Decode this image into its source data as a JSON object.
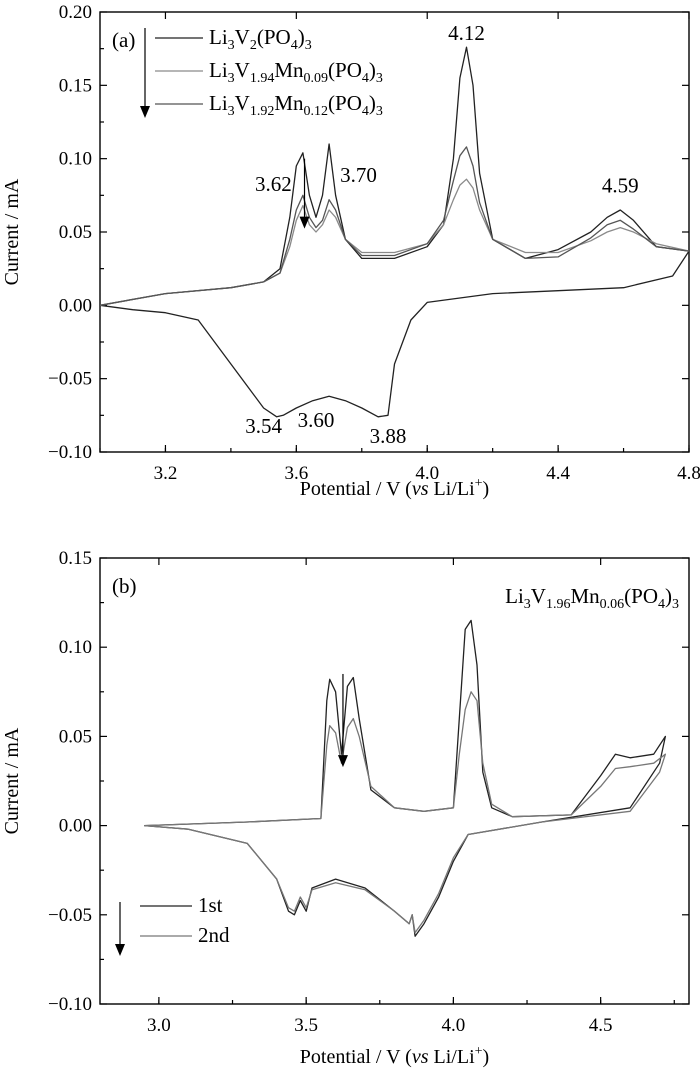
{
  "chart_data": [
    {
      "type": "line",
      "panel_label": "(a)",
      "xlabel": "Potential / V (vs Li/Li+)",
      "xlabel_parts": [
        "Potential / V (",
        "vs",
        " Li/Li",
        "+",
        ")"
      ],
      "ylabel": "Current / mA",
      "xlim": [
        3.0,
        4.8
      ],
      "ylim": [
        -0.1,
        0.2
      ],
      "x_ticks": [
        3.2,
        3.6,
        4.0,
        4.4,
        4.8
      ],
      "x_tick_labels": [
        "3.2",
        "3.6",
        "4.0",
        "4.4",
        "4.8"
      ],
      "y_ticks": [
        -0.1,
        -0.05,
        0.0,
        0.05,
        0.1,
        0.15,
        0.2
      ],
      "y_tick_labels": [
        "−0.10",
        "−0.05",
        "0.00",
        "0.05",
        "0.10",
        "0.15",
        "0.20"
      ],
      "legend": {
        "placement": "top-left",
        "entries": [
          {
            "parts": [
              "Li",
              "3",
              "V",
              "2",
              "(PO",
              "4",
              ")",
              "3"
            ],
            "color": "#222222"
          },
          {
            "parts": [
              "Li",
              "3",
              "V",
              "1.94",
              "Mn",
              "0.09",
              "(PO",
              "4",
              ")",
              "3"
            ],
            "color": "#8a8a8a"
          },
          {
            "parts": [
              "Li",
              "3",
              "V",
              "1.92",
              "Mn",
              "0.12",
              "(PO",
              "4",
              ")",
              "3"
            ],
            "color": "#555555"
          }
        ]
      },
      "annotations": [
        {
          "text": "3.62",
          "x": 3.53,
          "y": 0.078
        },
        {
          "text": "3.70",
          "x": 3.79,
          "y": 0.084
        },
        {
          "text": "4.12",
          "x": 4.12,
          "y": 0.181
        },
        {
          "text": "4.59",
          "x": 4.59,
          "y": 0.077
        },
        {
          "text": "3.54",
          "x": 3.5,
          "y": -0.087
        },
        {
          "text": "3.60",
          "x": 3.66,
          "y": -0.083
        },
        {
          "text": "3.88",
          "x": 3.88,
          "y": -0.094
        }
      ],
      "series": [
        {
          "name": "Li3V2(PO4)3",
          "color": "#222222",
          "x": [
            3.0,
            3.2,
            3.4,
            3.5,
            3.55,
            3.58,
            3.6,
            3.62,
            3.64,
            3.66,
            3.68,
            3.7,
            3.72,
            3.75,
            3.8,
            3.9,
            4.0,
            4.05,
            4.08,
            4.1,
            4.12,
            4.14,
            4.16,
            4.2,
            4.3,
            4.4,
            4.5,
            4.55,
            4.59,
            4.63,
            4.7,
            4.8,
            4.75,
            4.6,
            4.4,
            4.2,
            4.1,
            4.0,
            3.95,
            3.9,
            3.88,
            3.85,
            3.8,
            3.75,
            3.7,
            3.65,
            3.6,
            3.56,
            3.54,
            3.5,
            3.4,
            3.3,
            3.2,
            3.1,
            3.0
          ],
          "y": [
            0.0,
            0.008,
            0.012,
            0.016,
            0.025,
            0.06,
            0.095,
            0.104,
            0.075,
            0.06,
            0.075,
            0.11,
            0.075,
            0.045,
            0.032,
            0.032,
            0.04,
            0.055,
            0.1,
            0.155,
            0.176,
            0.15,
            0.09,
            0.045,
            0.032,
            0.038,
            0.05,
            0.06,
            0.065,
            0.058,
            0.04,
            0.037,
            0.02,
            0.012,
            0.01,
            0.008,
            0.005,
            0.002,
            -0.01,
            -0.04,
            -0.075,
            -0.076,
            -0.07,
            -0.065,
            -0.062,
            -0.065,
            -0.07,
            -0.075,
            -0.076,
            -0.07,
            -0.04,
            -0.01,
            -0.005,
            -0.003,
            0.0
          ]
        },
        {
          "name": "Li3V1.94Mn0.09(PO4)3",
          "color": "#8a8a8a",
          "x": [
            3.0,
            3.2,
            3.4,
            3.5,
            3.55,
            3.58,
            3.6,
            3.62,
            3.64,
            3.66,
            3.68,
            3.7,
            3.72,
            3.75,
            3.8,
            3.9,
            4.0,
            4.05,
            4.08,
            4.1,
            4.12,
            4.14,
            4.16,
            4.2,
            4.3,
            4.4,
            4.5,
            4.55,
            4.59,
            4.63,
            4.7,
            4.8
          ],
          "y": [
            0.0,
            0.008,
            0.012,
            0.016,
            0.022,
            0.04,
            0.058,
            0.068,
            0.055,
            0.05,
            0.055,
            0.065,
            0.06,
            0.045,
            0.036,
            0.036,
            0.042,
            0.055,
            0.072,
            0.082,
            0.086,
            0.08,
            0.065,
            0.045,
            0.036,
            0.036,
            0.044,
            0.05,
            0.053,
            0.05,
            0.042,
            0.037
          ]
        },
        {
          "name": "Li3V1.92Mn0.12(PO4)3",
          "color": "#555555",
          "x": [
            3.0,
            3.2,
            3.4,
            3.5,
            3.55,
            3.58,
            3.6,
            3.62,
            3.64,
            3.66,
            3.68,
            3.7,
            3.72,
            3.75,
            3.8,
            3.9,
            4.0,
            4.05,
            4.08,
            4.1,
            4.12,
            4.14,
            4.16,
            4.2,
            4.3,
            4.4,
            4.5,
            4.55,
            4.59,
            4.63,
            4.7,
            4.8
          ],
          "y": [
            0.0,
            0.008,
            0.012,
            0.016,
            0.022,
            0.045,
            0.065,
            0.075,
            0.06,
            0.053,
            0.058,
            0.072,
            0.065,
            0.045,
            0.034,
            0.034,
            0.042,
            0.058,
            0.085,
            0.102,
            0.108,
            0.095,
            0.07,
            0.045,
            0.032,
            0.033,
            0.046,
            0.055,
            0.058,
            0.052,
            0.04,
            0.037
          ]
        }
      ]
    },
    {
      "type": "line",
      "panel_label": "(b)",
      "title_parts": [
        "Li",
        "3",
        "V",
        "1.96",
        "Mn",
        "0.06",
        "(PO",
        "4",
        ")",
        "3"
      ],
      "xlabel": "Potential / V (vs Li/Li+)",
      "xlabel_parts": [
        "Potential / V (",
        "vs",
        " Li/Li",
        "+",
        ")"
      ],
      "ylabel": "Current / mA",
      "xlim": [
        2.8,
        4.8
      ],
      "ylim": [
        -0.1,
        0.15
      ],
      "x_ticks": [
        3.0,
        3.5,
        4.0,
        4.5
      ],
      "x_tick_labels": [
        "3.0",
        "3.5",
        "4.0",
        "4.5"
      ],
      "y_ticks": [
        -0.1,
        -0.05,
        0.0,
        0.05,
        0.1,
        0.15
      ],
      "y_tick_labels": [
        "−0.10",
        "−0.05",
        "0.00",
        "0.05",
        "0.10",
        "0.15"
      ],
      "legend": {
        "placement": "bottom-left",
        "entries": [
          {
            "parts": [
              "1st"
            ],
            "color": "#222222"
          },
          {
            "parts": [
              "2nd"
            ],
            "color": "#777777"
          }
        ]
      },
      "series": [
        {
          "name": "1st",
          "color": "#222222",
          "x": [
            2.95,
            3.3,
            3.55,
            3.57,
            3.58,
            3.6,
            3.62,
            3.64,
            3.66,
            3.68,
            3.72,
            3.8,
            3.9,
            4.0,
            4.02,
            4.04,
            4.06,
            4.08,
            4.1,
            4.13,
            4.2,
            4.4,
            4.5,
            4.55,
            4.6,
            4.68,
            4.72,
            4.7,
            4.6,
            4.3,
            4.05,
            4.0,
            3.95,
            3.9,
            3.87,
            3.86,
            3.85,
            3.8,
            3.7,
            3.6,
            3.52,
            3.5,
            3.48,
            3.46,
            3.44,
            3.4,
            3.3,
            3.1,
            2.95
          ],
          "y": [
            0.0,
            0.002,
            0.004,
            0.07,
            0.082,
            0.075,
            0.04,
            0.078,
            0.083,
            0.06,
            0.02,
            0.01,
            0.008,
            0.01,
            0.06,
            0.11,
            0.115,
            0.09,
            0.03,
            0.01,
            0.005,
            0.006,
            0.028,
            0.04,
            0.038,
            0.04,
            0.05,
            0.035,
            0.01,
            0.002,
            -0.005,
            -0.02,
            -0.04,
            -0.055,
            -0.062,
            -0.05,
            -0.055,
            -0.048,
            -0.035,
            -0.03,
            -0.035,
            -0.048,
            -0.042,
            -0.05,
            -0.048,
            -0.03,
            -0.01,
            -0.002,
            0.0
          ]
        },
        {
          "name": "2nd",
          "color": "#777777",
          "x": [
            2.95,
            3.3,
            3.55,
            3.57,
            3.58,
            3.6,
            3.62,
            3.64,
            3.66,
            3.68,
            3.72,
            3.8,
            3.9,
            4.0,
            4.02,
            4.04,
            4.06,
            4.08,
            4.1,
            4.13,
            4.2,
            4.4,
            4.5,
            4.55,
            4.6,
            4.68,
            4.72,
            4.7,
            4.6,
            4.3,
            4.05,
            4.0,
            3.95,
            3.9,
            3.87,
            3.86,
            3.85,
            3.8,
            3.7,
            3.6,
            3.52,
            3.5,
            3.48,
            3.46,
            3.44,
            3.4,
            3.3,
            3.1,
            2.95
          ],
          "y": [
            0.0,
            0.002,
            0.004,
            0.045,
            0.056,
            0.052,
            0.035,
            0.055,
            0.06,
            0.05,
            0.022,
            0.01,
            0.008,
            0.01,
            0.04,
            0.065,
            0.075,
            0.07,
            0.035,
            0.012,
            0.005,
            0.006,
            0.022,
            0.032,
            0.033,
            0.035,
            0.04,
            0.03,
            0.008,
            0.002,
            -0.005,
            -0.018,
            -0.038,
            -0.053,
            -0.06,
            -0.05,
            -0.055,
            -0.048,
            -0.036,
            -0.032,
            -0.036,
            -0.046,
            -0.04,
            -0.048,
            -0.046,
            -0.03,
            -0.01,
            -0.002,
            0.0
          ]
        }
      ]
    }
  ]
}
